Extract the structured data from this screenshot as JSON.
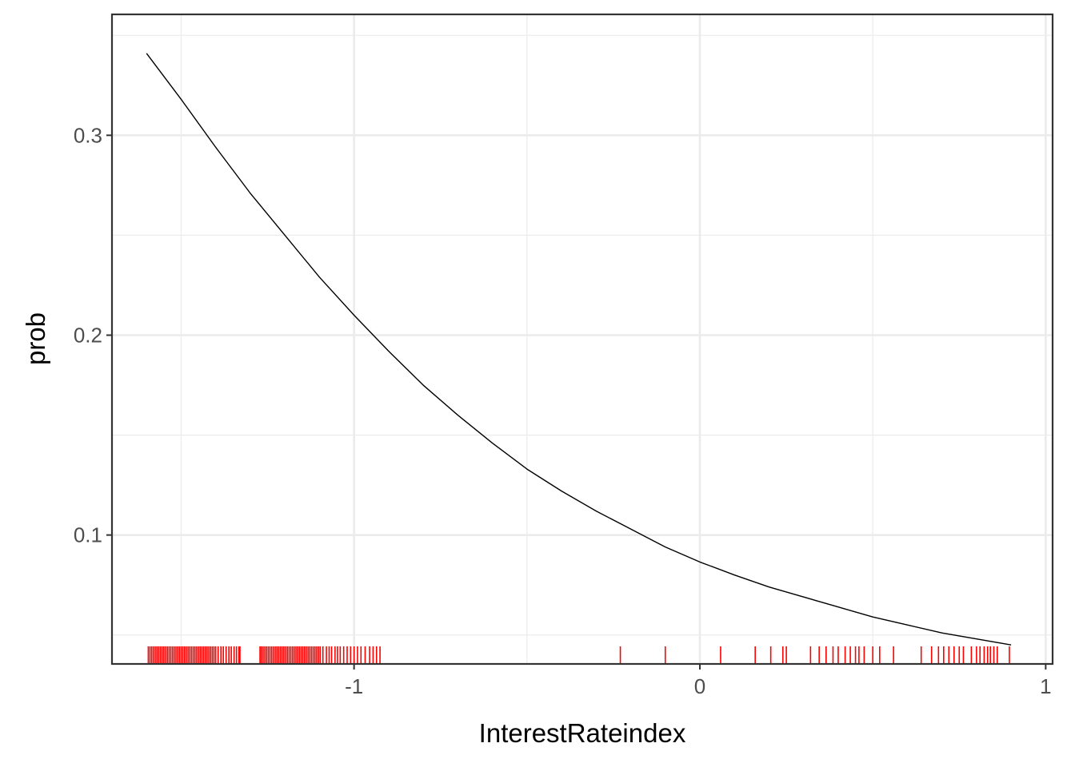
{
  "chart_data": {
    "type": "line",
    "title": "",
    "xlabel": "InterestRateindex",
    "ylabel": "prob",
    "xlim": [
      -1.7,
      1.02
    ],
    "ylim": [
      0.0355,
      0.3605
    ],
    "x_ticks": [
      -1,
      0,
      1
    ],
    "x_tick_labels": [
      "-1",
      "0",
      "1"
    ],
    "x_minor_ticks": [
      -1.5,
      -0.5,
      0.5
    ],
    "y_ticks": [
      0.1,
      0.2,
      0.3
    ],
    "y_tick_labels": [
      "0.1",
      "0.2",
      "0.3"
    ],
    "y_minor_ticks": [
      0.05,
      0.15,
      0.25,
      0.35
    ],
    "grid": true,
    "legend": "none",
    "series": [
      {
        "x": [
          -1.6,
          -1.5,
          -1.4,
          -1.3,
          -1.2,
          -1.1,
          -1.0,
          -0.9,
          -0.8,
          -0.7,
          -0.6,
          -0.5,
          -0.4,
          -0.3,
          -0.2,
          -0.1,
          0.0,
          0.1,
          0.2,
          0.3,
          0.4,
          0.5,
          0.6,
          0.7,
          0.8,
          0.9
        ],
        "y": [
          0.341,
          0.318,
          0.294,
          0.271,
          0.25,
          0.229,
          0.21,
          0.192,
          0.175,
          0.16,
          0.146,
          0.133,
          0.122,
          0.112,
          0.103,
          0.094,
          0.0865,
          0.08,
          0.074,
          0.069,
          0.064,
          0.059,
          0.055,
          0.051,
          0.048,
          0.045
        ],
        "color": "#000000"
      }
    ],
    "rug": {
      "color": "#ff0000",
      "x": [
        -1.595,
        -1.59,
        -1.585,
        -1.58,
        -1.575,
        -1.57,
        -1.565,
        -1.56,
        -1.555,
        -1.55,
        -1.545,
        -1.54,
        -1.535,
        -1.53,
        -1.525,
        -1.52,
        -1.515,
        -1.51,
        -1.505,
        -1.5,
        -1.495,
        -1.49,
        -1.485,
        -1.48,
        -1.475,
        -1.47,
        -1.465,
        -1.46,
        -1.455,
        -1.45,
        -1.445,
        -1.44,
        -1.435,
        -1.43,
        -1.425,
        -1.42,
        -1.415,
        -1.41,
        -1.405,
        -1.4,
        -1.393,
        -1.385,
        -1.378,
        -1.37,
        -1.362,
        -1.355,
        -1.347,
        -1.34,
        -1.333,
        -1.33,
        -1.272,
        -1.268,
        -1.263,
        -1.258,
        -1.253,
        -1.248,
        -1.243,
        -1.238,
        -1.233,
        -1.228,
        -1.223,
        -1.218,
        -1.213,
        -1.208,
        -1.203,
        -1.198,
        -1.193,
        -1.188,
        -1.183,
        -1.178,
        -1.173,
        -1.168,
        -1.163,
        -1.158,
        -1.153,
        -1.148,
        -1.143,
        -1.138,
        -1.133,
        -1.128,
        -1.123,
        -1.118,
        -1.113,
        -1.108,
        -1.103,
        -1.098,
        -1.09,
        -1.08,
        -1.072,
        -1.065,
        -1.055,
        -1.048,
        -1.04,
        -1.03,
        -1.02,
        -1.01,
        -1.0,
        -0.99,
        -0.98,
        -0.968,
        -0.955,
        -0.945,
        -0.935,
        -0.925,
        -0.23,
        -0.1,
        0.06,
        0.16,
        0.205,
        0.24,
        0.25,
        0.32,
        0.345,
        0.365,
        0.385,
        0.4,
        0.42,
        0.435,
        0.45,
        0.46,
        0.475,
        0.5,
        0.52,
        0.56,
        0.64,
        0.67,
        0.69,
        0.705,
        0.72,
        0.735,
        0.75,
        0.762,
        0.785,
        0.8,
        0.81,
        0.822,
        0.832,
        0.84,
        0.85,
        0.86,
        0.895
      ]
    }
  }
}
